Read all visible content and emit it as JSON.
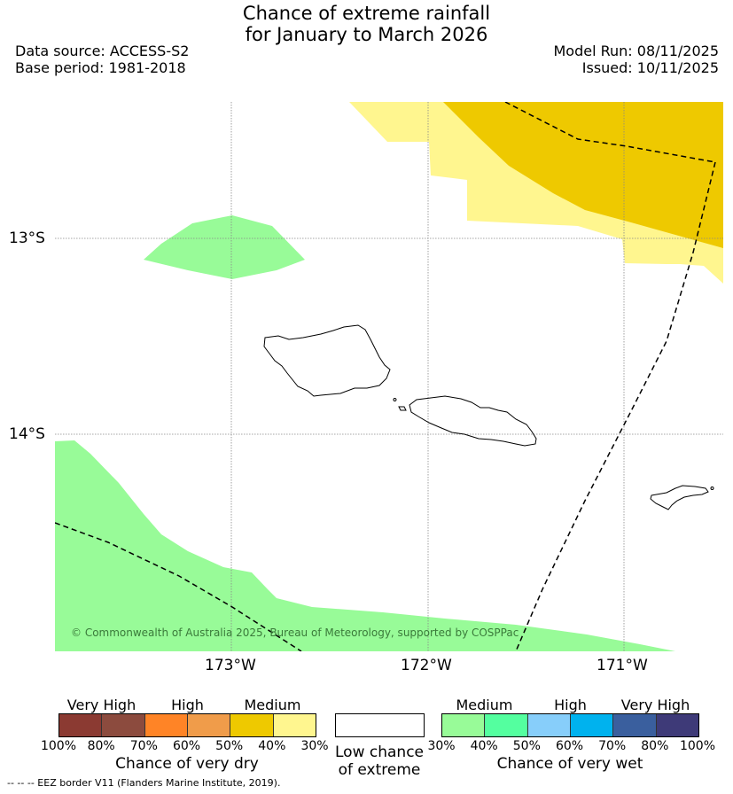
{
  "title_line1": "Chance of extreme rainfall",
  "title_line2": "for January to March 2026",
  "data_source": "Data source: ACCESS-S2",
  "base_period": "Base period: 1981-2018",
  "model_run": "Model Run: 08/11/2025",
  "issued": "Issued: 10/11/2025",
  "lat_labels": [
    "13°S",
    "14°S"
  ],
  "lon_labels": [
    "173°W",
    "172°W",
    "171°W"
  ],
  "copyright": "© Commonwealth of Australia 2025, Bureau of Meteorology, supported by COSPPac",
  "dry_legend": {
    "categories": [
      "Very High",
      "High",
      "Medium"
    ],
    "ticks": [
      "100%",
      "80%",
      "70%",
      "60%",
      "50%",
      "40%",
      "30%"
    ],
    "colors": [
      "#8b3a32",
      "#8c4b3e",
      "#ff8426",
      "#f09c4a",
      "#eec900",
      "#fff68f"
    ],
    "title": "Chance of very dry"
  },
  "low_chance_legend": {
    "line1": "Low chance",
    "line2": "of extreme",
    "color": "#ffffff"
  },
  "wet_legend": {
    "categories": [
      "Medium",
      "High",
      "Very High"
    ],
    "ticks": [
      "30%",
      "40%",
      "50%",
      "60%",
      "70%",
      "80%",
      "100%"
    ],
    "colors": [
      "#98fb98",
      "#54ff9f",
      "#87cefa",
      "#00b2ee",
      "#3a5f9e",
      "#3e3a78"
    ],
    "title": "Chance of very wet"
  },
  "footnote": "-- -- -- EEZ border V11 (Flanders Marine Institute, 2019)."
}
